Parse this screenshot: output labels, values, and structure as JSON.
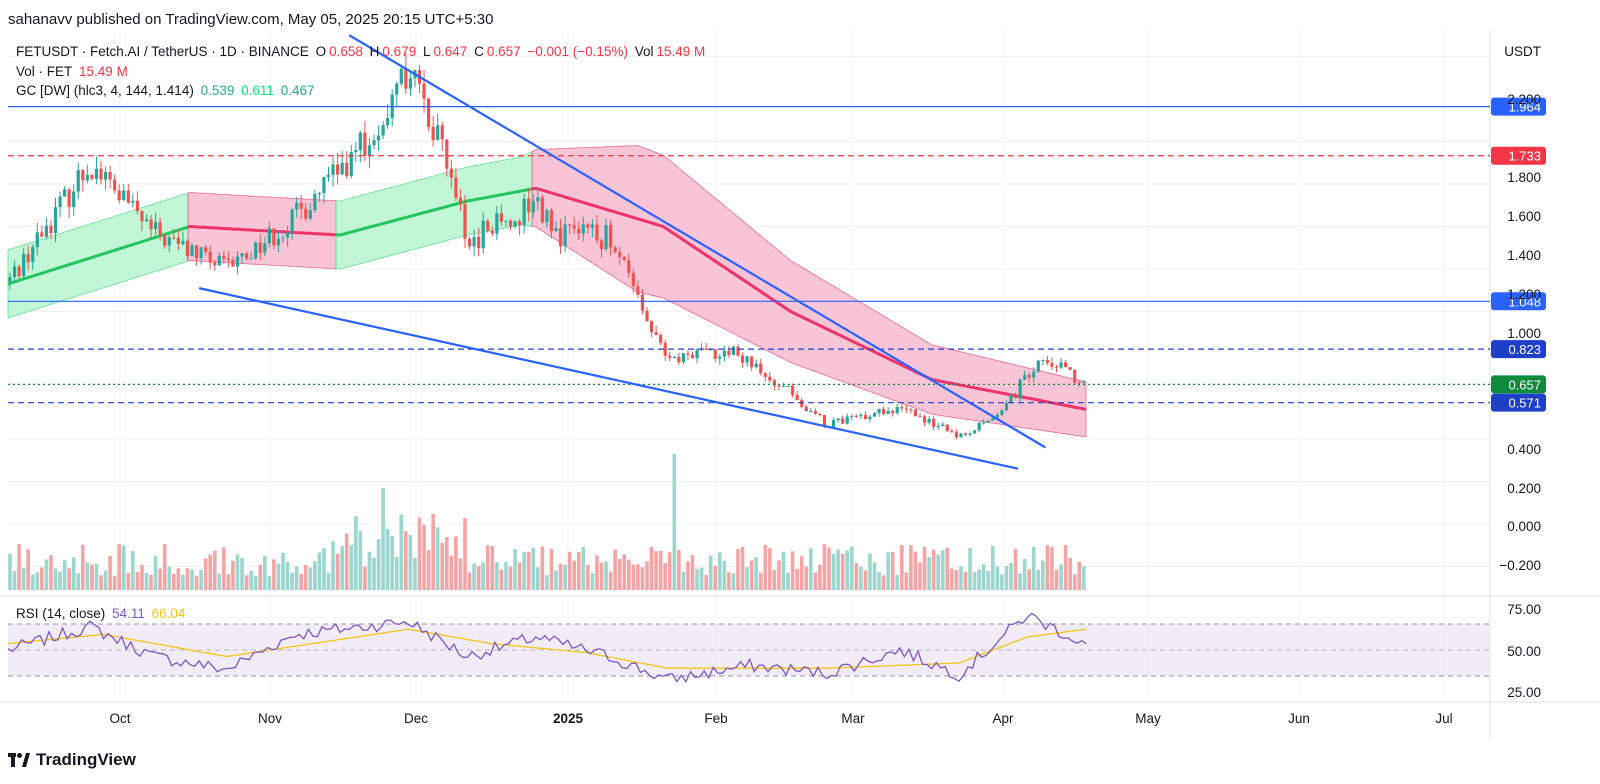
{
  "attribution": "sahanavv published on TradingView.com, May 05, 2025 20:15 UTC+5:30",
  "legend": {
    "symbol": "FETUSDT · Fetch.AI / TetherUS · 1D · BINANCE",
    "open_label": "O",
    "open": "0.658",
    "high_label": "H",
    "high": "0.679",
    "low_label": "L",
    "low": "0.647",
    "close_label": "C",
    "close": "0.657",
    "change": "−0.001 (−0.15%)",
    "vol_label": "Vol",
    "vol": "15.49 M",
    "volume_line_label": "Vol · FET",
    "volume_line_value": "15.49 M",
    "gc_label": "GC [DW] (hlc3, 4, 144, 1.414)",
    "gc_values": [
      "0.539",
      "0.611",
      "0.467"
    ],
    "rsi_label": "RSI (14, close)",
    "rsi_values": [
      "54.11",
      "66.04"
    ]
  },
  "footer": {
    "brand": "TradingView"
  },
  "colors": {
    "up": "#26a69a",
    "down": "#ef5350",
    "band_green": "#b7f5cf",
    "band_red": "#f8bcd0",
    "trendline": "#2962ff",
    "gc_center": "#f0336b",
    "rsi_line": "#7e57c2",
    "rsi_ma": "#f5c518"
  },
  "chart_data": {
    "type": "candlestick",
    "symbol": "FETUSDT",
    "exchange": "BINANCE",
    "timeframe": "1D",
    "currency_label": "USDT",
    "price_axis_ticks": [
      "2.200",
      "1.800",
      "1.600",
      "1.400",
      "1.200",
      "1.000",
      "0.400",
      "0.200",
      "0.000",
      "−0.200"
    ],
    "time_axis_labels": [
      "Oct",
      "Nov",
      "Dec",
      "2025",
      "Feb",
      "Mar",
      "Apr",
      "May",
      "Jun",
      "Jul"
    ],
    "price_labels": [
      {
        "value": "1.964",
        "color": "#2962ff",
        "line": "solid"
      },
      {
        "value": "1.733",
        "color": "#f23645",
        "line": "dashed"
      },
      {
        "value": "1.048",
        "color": "#2962ff",
        "line": "solid"
      },
      {
        "value": "0.823",
        "color": "#1e40c8",
        "line": "dashed"
      },
      {
        "value": "0.657",
        "color": "#0e8a3b",
        "line": "dotted"
      },
      {
        "value": "0.571",
        "color": "#1e40c8",
        "line": "dashed"
      }
    ],
    "price_anchors": [
      {
        "date": "2024-09-10",
        "price": 1.14
      },
      {
        "date": "2024-09-28",
        "price": 1.7
      },
      {
        "date": "2024-10-12",
        "price": 1.37
      },
      {
        "date": "2024-10-28",
        "price": 1.2
      },
      {
        "date": "2024-11-12",
        "price": 1.44
      },
      {
        "date": "2024-11-30",
        "price": 1.85
      },
      {
        "date": "2024-12-07",
        "price": 2.15
      },
      {
        "date": "2024-12-14",
        "price": 1.8
      },
      {
        "date": "2024-12-20",
        "price": 1.32
      },
      {
        "date": "2025-01-04",
        "price": 1.52
      },
      {
        "date": "2025-01-08",
        "price": 1.36
      },
      {
        "date": "2025-01-20",
        "price": 1.35
      },
      {
        "date": "2025-02-02",
        "price": 0.78
      },
      {
        "date": "2025-02-15",
        "price": 0.82
      },
      {
        "date": "2025-03-01",
        "price": 0.62
      },
      {
        "date": "2025-03-09",
        "price": 0.47
      },
      {
        "date": "2025-03-25",
        "price": 0.55
      },
      {
        "date": "2025-04-07",
        "price": 0.41
      },
      {
        "date": "2025-04-18",
        "price": 0.57
      },
      {
        "date": "2025-04-25",
        "price": 0.8
      },
      {
        "date": "2025-05-05",
        "price": 0.657
      }
    ],
    "gc_center": [
      {
        "date": "2024-09-10",
        "price": 1.13
      },
      {
        "date": "2024-10-20",
        "price": 1.4
      },
      {
        "date": "2024-11-05",
        "price": 1.38
      },
      {
        "date": "2024-11-22",
        "price": 1.36
      },
      {
        "date": "2024-12-20",
        "price": 1.52
      },
      {
        "date": "2025-01-04",
        "price": 1.58
      },
      {
        "date": "2025-02-01",
        "price": 1.4
      },
      {
        "date": "2025-03-01",
        "price": 1.0
      },
      {
        "date": "2025-04-01",
        "price": 0.68
      },
      {
        "date": "2025-05-05",
        "price": 0.539
      }
    ],
    "gc_upper_last": 0.611,
    "gc_lower_last": 0.467,
    "trendlines": [
      {
        "from": {
          "date": "2024-11-24",
          "price": 2.3
        },
        "to": {
          "date": "2025-04-26",
          "price": 0.36
        }
      },
      {
        "from": {
          "date": "2024-10-22",
          "price": 1.11
        },
        "to": {
          "date": "2025-04-20",
          "price": 0.26
        }
      }
    ],
    "rsi": {
      "ticks": [
        "75.00",
        "50.00",
        "25.00"
      ],
      "band": [
        30,
        70
      ],
      "last": 54.11,
      "ma_last": 66.04,
      "anchors": [
        {
          "date": "2024-09-10",
          "value": 50
        },
        {
          "date": "2024-09-28",
          "value": 68
        },
        {
          "date": "2024-10-12",
          "value": 45
        },
        {
          "date": "2024-10-28",
          "value": 35
        },
        {
          "date": "2024-11-12",
          "value": 62
        },
        {
          "date": "2024-12-07",
          "value": 72
        },
        {
          "date": "2024-12-20",
          "value": 45
        },
        {
          "date": "2025-01-04",
          "value": 60
        },
        {
          "date": "2025-01-20",
          "value": 45
        },
        {
          "date": "2025-02-02",
          "value": 27
        },
        {
          "date": "2025-02-20",
          "value": 38
        },
        {
          "date": "2025-03-09",
          "value": 32
        },
        {
          "date": "2025-03-25",
          "value": 50
        },
        {
          "date": "2025-04-07",
          "value": 31
        },
        {
          "date": "2025-04-22",
          "value": 77
        },
        {
          "date": "2025-05-05",
          "value": 54.11
        }
      ],
      "ma_anchors": [
        {
          "date": "2024-09-10",
          "value": 55
        },
        {
          "date": "2024-10-01",
          "value": 62
        },
        {
          "date": "2024-10-28",
          "value": 45
        },
        {
          "date": "2024-12-07",
          "value": 66
        },
        {
          "date": "2024-12-25",
          "value": 55
        },
        {
          "date": "2025-01-15",
          "value": 48
        },
        {
          "date": "2025-02-02",
          "value": 36
        },
        {
          "date": "2025-03-09",
          "value": 36
        },
        {
          "date": "2025-04-07",
          "value": 40
        },
        {
          "date": "2025-04-22",
          "value": 60
        },
        {
          "date": "2025-05-05",
          "value": 66.04
        }
      ]
    },
    "volume_spike": {
      "date": "2025-02-03"
    }
  }
}
